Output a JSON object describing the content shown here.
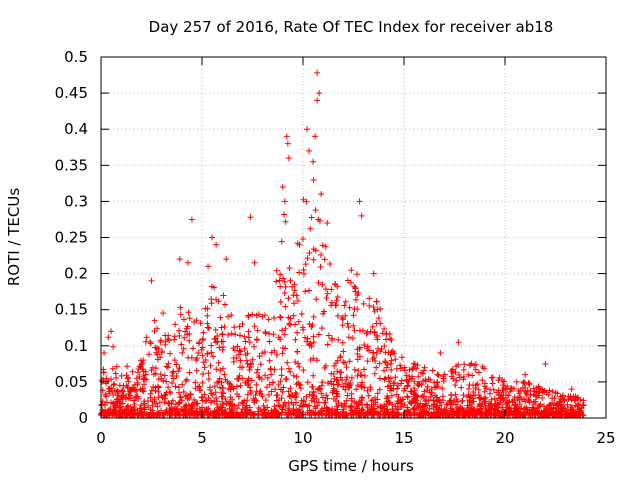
{
  "chart_data": {
    "type": "scatter",
    "title": "Day 257 of 2016, Rate Of TEC Index for receiver ab18",
    "xlabel": "GPS time / hours",
    "ylabel": "ROTI / TECUs",
    "xlim": [
      0,
      25
    ],
    "ylim": [
      0,
      0.5
    ],
    "x_ticks": [
      0,
      5,
      10,
      15,
      20,
      25
    ],
    "y_ticks": [
      0,
      0.05,
      0.1,
      0.15,
      0.2,
      0.25,
      0.3,
      0.35,
      0.4,
      0.45,
      0.5
    ],
    "x_tick_labels": [
      "0",
      "5",
      "10",
      "15",
      "20",
      "25"
    ],
    "y_tick_labels": [
      "0",
      "0.05",
      "0.1",
      "0.15",
      "0.2",
      "0.25",
      "0.3",
      "0.35",
      "0.4",
      "0.45",
      "0.5"
    ],
    "grid": true,
    "marker": "+",
    "series_color": "#ff0000",
    "envelope": {
      "x": [
        0,
        0.5,
        1,
        2,
        2.5,
        3,
        3.5,
        4,
        4.5,
        5,
        5.5,
        6,
        6.5,
        7,
        7.5,
        8,
        8.5,
        9,
        9.5,
        10,
        10.5,
        11,
        11.5,
        12,
        12.5,
        13,
        13.5,
        14,
        14.5,
        15,
        16,
        17,
        18,
        19,
        20,
        21,
        22,
        23,
        23.9
      ],
      "y_max": [
        0.09,
        0.12,
        0.07,
        0.08,
        0.14,
        0.15,
        0.14,
        0.16,
        0.14,
        0.13,
        0.22,
        0.18,
        0.14,
        0.13,
        0.15,
        0.14,
        0.15,
        0.3,
        0.22,
        0.3,
        0.35,
        0.25,
        0.2,
        0.17,
        0.22,
        0.16,
        0.17,
        0.14,
        0.1,
        0.08,
        0.07,
        0.06,
        0.08,
        0.07,
        0.05,
        0.05,
        0.04,
        0.03,
        0.03
      ]
    },
    "notable_points": [
      {
        "x": 10.7,
        "y": 0.478
      },
      {
        "x": 10.8,
        "y": 0.45
      },
      {
        "x": 10.7,
        "y": 0.44
      },
      {
        "x": 10.2,
        "y": 0.4
      },
      {
        "x": 10.6,
        "y": 0.39
      },
      {
        "x": 9.2,
        "y": 0.39
      },
      {
        "x": 9.25,
        "y": 0.38
      },
      {
        "x": 10.3,
        "y": 0.37
      },
      {
        "x": 9.3,
        "y": 0.36
      },
      {
        "x": 10.5,
        "y": 0.355
      },
      {
        "x": 10.9,
        "y": 0.31
      },
      {
        "x": 9.0,
        "y": 0.32
      },
      {
        "x": 9.1,
        "y": 0.3
      },
      {
        "x": 12.8,
        "y": 0.3
      },
      {
        "x": 11.2,
        "y": 0.27
      },
      {
        "x": 4.5,
        "y": 0.275
      },
      {
        "x": 7.4,
        "y": 0.278
      },
      {
        "x": 12.9,
        "y": 0.28
      },
      {
        "x": 5.5,
        "y": 0.25
      },
      {
        "x": 5.7,
        "y": 0.24
      },
      {
        "x": 3.9,
        "y": 0.22
      },
      {
        "x": 4.3,
        "y": 0.215
      },
      {
        "x": 6.2,
        "y": 0.22
      },
      {
        "x": 5.3,
        "y": 0.21
      },
      {
        "x": 7.6,
        "y": 0.215
      },
      {
        "x": 13.5,
        "y": 0.2
      },
      {
        "x": 2.5,
        "y": 0.19
      },
      {
        "x": 12.6,
        "y": 0.18
      },
      {
        "x": 0.5,
        "y": 0.12
      },
      {
        "x": 0.15,
        "y": 0.09
      },
      {
        "x": 17.7,
        "y": 0.105
      },
      {
        "x": 16.8,
        "y": 0.09
      },
      {
        "x": 21.0,
        "y": 0.06
      },
      {
        "x": 22.0,
        "y": 0.075
      },
      {
        "x": 23.3,
        "y": 0.04
      }
    ]
  }
}
